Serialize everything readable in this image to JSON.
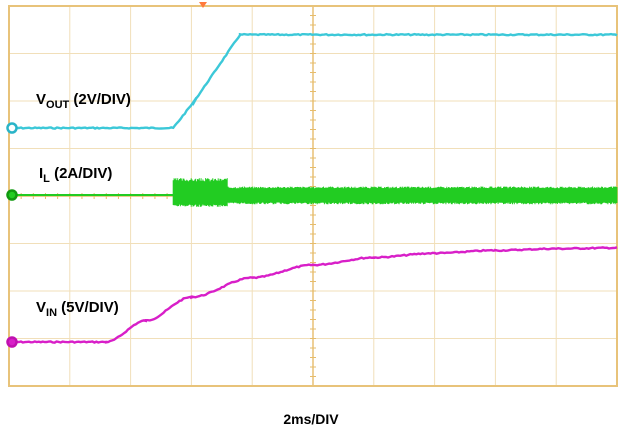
{
  "chart_data": {
    "type": "line",
    "title": "",
    "time_scale": "2ms/DIV",
    "x_unit": "ms",
    "xlim": [
      0,
      20
    ],
    "divisions": {
      "horizontal": 10,
      "vertical": 8
    },
    "grid": true,
    "colors": {
      "frame": "#e8c37a",
      "grid": "#f1dfb9",
      "center_axis": "#e6bc6b",
      "marker_top": "#ff7a3c"
    },
    "series": [
      {
        "key": "vout",
        "label_main": "V",
        "label_sub": "OUT",
        "label_rest": " (2V/DIV)",
        "color": "#3cc8d8",
        "marker_color": "#2ab4c8",
        "x": [
          0,
          5.4,
          6.1,
          7.6,
          20
        ],
        "y": [
          0,
          0,
          2.8,
          9.7,
          9.7
        ]
      },
      {
        "key": "il",
        "label_main": "I",
        "label_sub": "L",
        "label_rest": " (2A/DIV)",
        "color": "#22cc22",
        "marker_color": "#119911",
        "baseline": 0,
        "ripple": {
          "start": 5.4,
          "settle": 7.2,
          "x_end": 20,
          "peak_early": 1.0,
          "trough_early": -0.7,
          "peak": 0.5,
          "trough": -0.55
        }
      },
      {
        "key": "vin",
        "label_main": "V",
        "label_sub": "IN",
        "label_rest": " (5V/DIV)",
        "color": "#d81fc8",
        "marker_color": "#c010b0",
        "x": [
          0,
          3.2,
          4.5,
          6,
          8,
          10,
          12,
          14,
          16,
          18,
          20
        ],
        "y": [
          0,
          0,
          1.0,
          2.1,
          3.0,
          3.6,
          3.95,
          4.15,
          4.28,
          4.36,
          4.4
        ]
      }
    ]
  }
}
